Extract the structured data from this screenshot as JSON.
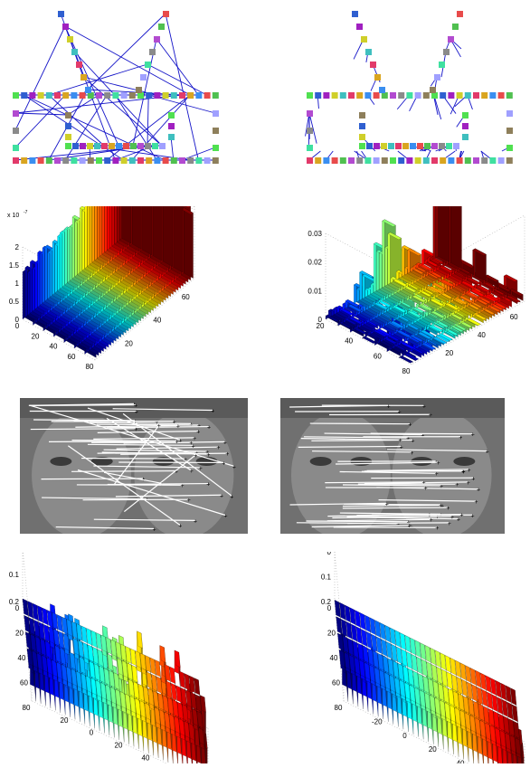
{
  "colors": {
    "square_palette": [
      "#e23a6a",
      "#d9a520",
      "#3a8ef0",
      "#e84b4b",
      "#50c050",
      "#b24bd0",
      "#8a8a8a",
      "#3fe0a0",
      "#a0a0ff",
      "#8e7f5b",
      "#50e050",
      "#2f5fd0",
      "#a020c0",
      "#cfcf2a",
      "#3fbfbf"
    ],
    "match_line": "#1414c8",
    "arrow_line": "#ffffff"
  },
  "row1": {
    "left": {
      "type": "graph-matching",
      "label": "random-match"
    },
    "right": {
      "type": "graph-matching",
      "label": "correct-match"
    }
  },
  "row2": {
    "left": {
      "chart_data": {
        "type": "bar3d",
        "z_scale_label": "x 10",
        "z_exponent": "-7",
        "z_ticks": [
          "0",
          "0.5",
          "1",
          "1.5",
          "2"
        ],
        "x_ticks": [
          "0",
          "20",
          "40",
          "60",
          "80"
        ],
        "y_ticks": [
          "20",
          "40",
          "60"
        ],
        "grid": true
      }
    },
    "right": {
      "chart_data": {
        "type": "bar3d",
        "z_ticks": [
          "0",
          "0.01",
          "0.02",
          "0.03"
        ],
        "x_ticks": [
          "20",
          "40",
          "60",
          "80"
        ],
        "y_ticks": [
          "20",
          "40",
          "60"
        ],
        "grid": true
      }
    }
  },
  "row3": {
    "left": {
      "type": "feature-correspondence",
      "content": "faces"
    },
    "right": {
      "type": "feature-correspondence",
      "content": "faces"
    }
  },
  "row4": {
    "left": {
      "chart_data": {
        "type": "bar3d",
        "z_ticks": [
          "0.2",
          "0.1",
          "0"
        ],
        "y_ticks": [
          "20",
          "0",
          "20",
          "40",
          "60",
          "80"
        ],
        "x_ticks": [
          "0",
          "20",
          "40",
          "60",
          "80"
        ],
        "grid": true
      }
    },
    "right": {
      "chart_data": {
        "type": "bar3d",
        "z_ticks": [
          "0.2",
          "0.1",
          "0"
        ],
        "y_ticks": [
          "-20",
          "0",
          "20",
          "40",
          "60",
          "80"
        ],
        "x_ticks": [
          "0",
          "20",
          "40",
          "60",
          "80"
        ],
        "grid": true
      }
    }
  }
}
